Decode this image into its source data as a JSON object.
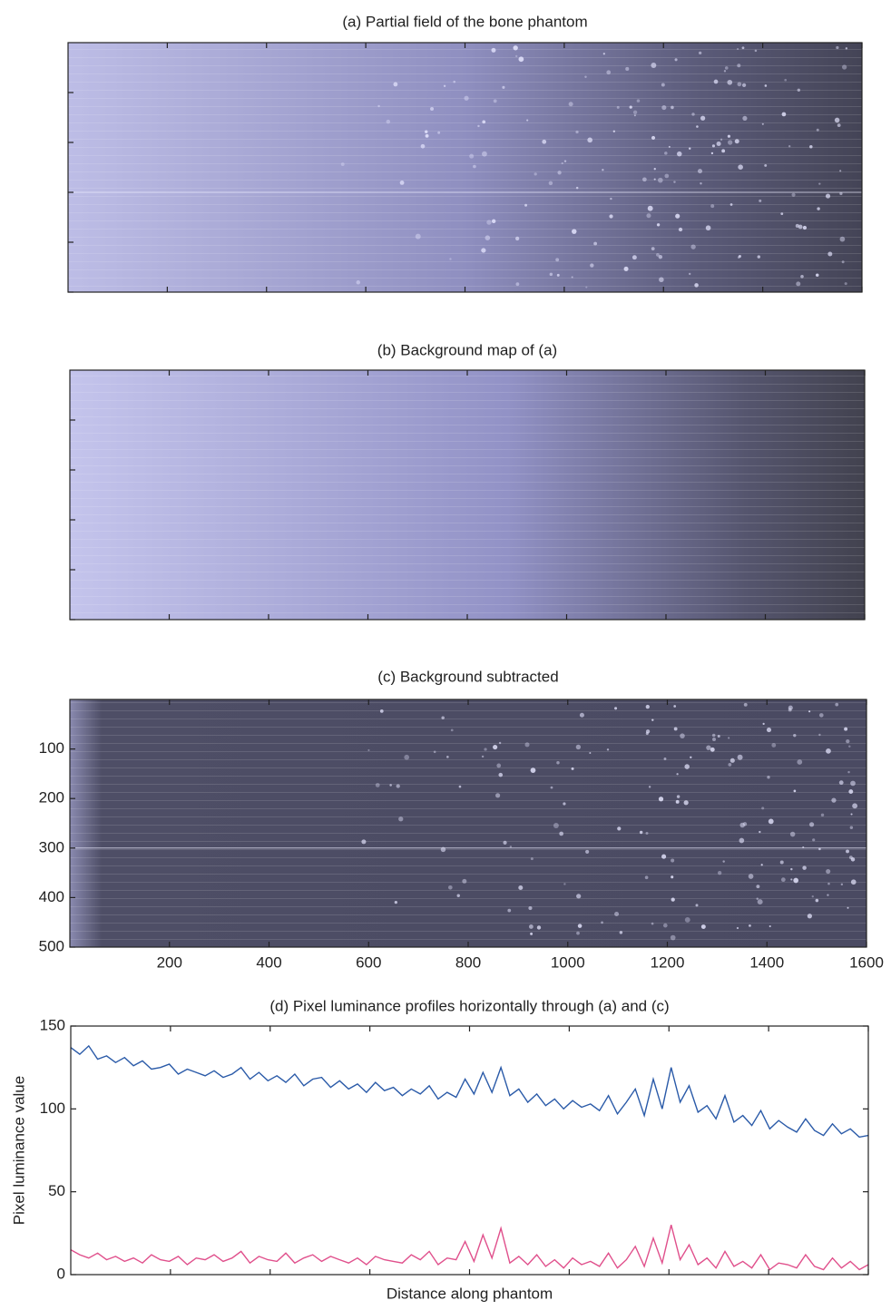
{
  "chart_data": [
    {
      "type": "image",
      "title": "(a) Partial field of the bone phantom",
      "shade": "raw"
    },
    {
      "type": "image",
      "title": "(b) Background map of (a)",
      "shade": "background"
    },
    {
      "type": "image",
      "title": "(c) Background subtracted",
      "shade": "subtracted",
      "xlim": [
        0,
        1600
      ],
      "xticks": [
        200,
        400,
        600,
        800,
        1000,
        1200,
        1400,
        1600
      ],
      "ylim": [
        0,
        500
      ],
      "y_inverted": true,
      "yticks": [
        100,
        200,
        300,
        400,
        500
      ]
    },
    {
      "type": "line",
      "title": "(d) Pixel luminance profiles horizontally through (a) and (c)",
      "x_label": "Distance along phantom",
      "y_label": "Pixel luminance value",
      "ylim": [
        0,
        150
      ],
      "yticks": [
        0,
        50,
        100,
        150
      ],
      "series": [
        {
          "color": "#2a5aa8",
          "values": [
            137,
            133,
            138,
            130,
            132,
            128,
            131,
            126,
            129,
            124,
            125,
            127,
            121,
            124,
            122,
            120,
            123,
            119,
            121,
            125,
            118,
            122,
            117,
            120,
            116,
            121,
            114,
            118,
            119,
            113,
            117,
            112,
            115,
            110,
            116,
            111,
            113,
            108,
            112,
            109,
            114,
            106,
            110,
            107,
            118,
            109,
            122,
            110,
            125,
            108,
            112,
            104,
            109,
            102,
            106,
            100,
            105,
            101,
            103,
            99,
            108,
            97,
            104,
            112,
            96,
            118,
            100,
            125,
            104,
            114,
            98,
            102,
            94,
            108,
            92,
            96,
            90,
            99,
            88,
            93,
            89,
            86,
            94,
            87,
            84,
            91,
            85,
            88,
            83,
            84
          ]
        },
        {
          "color": "#e0508c",
          "values": [
            15,
            12,
            10,
            13,
            9,
            11,
            8,
            10,
            7,
            12,
            9,
            8,
            11,
            6,
            10,
            9,
            12,
            8,
            10,
            14,
            7,
            11,
            9,
            8,
            13,
            7,
            10,
            12,
            8,
            11,
            9,
            7,
            10,
            6,
            11,
            9,
            8,
            7,
            12,
            9,
            14,
            6,
            10,
            9,
            20,
            8,
            24,
            10,
            28,
            7,
            11,
            6,
            12,
            5,
            9,
            4,
            10,
            6,
            8,
            5,
            13,
            4,
            9,
            17,
            5,
            22,
            7,
            30,
            9,
            18,
            6,
            10,
            4,
            14,
            5,
            8,
            4,
            12,
            3,
            7,
            6,
            4,
            12,
            5,
            3,
            10,
            4,
            8,
            3,
            6
          ]
        }
      ]
    }
  ]
}
